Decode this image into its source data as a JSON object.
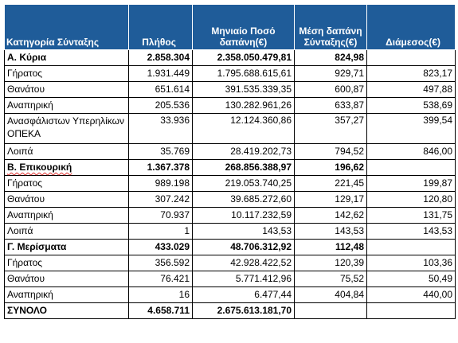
{
  "headers": {
    "category": "Κατηγορία Σύνταξης",
    "count": "Πλήθος",
    "monthly": "Μηνιαίο Ποσό δαπάνη(€)",
    "avg": "Μέση δαπάνη Σύνταξης(€)",
    "median": "Διάμεσος(€)"
  },
  "rows": [
    {
      "cat": "Α. Κύρια",
      "count": "2.858.304",
      "monthly": "2.358.050.479,81",
      "avg": "824,98",
      "median": ""
    },
    {
      "cat": "Γήρατος",
      "count": "1.931.449",
      "monthly": "1.795.688.615,61",
      "avg": "929,71",
      "median": "823,17"
    },
    {
      "cat": "Θανάτου",
      "count": "651.614",
      "monthly": "391.535.339,35",
      "avg": "600,87",
      "median": "497,88"
    },
    {
      "cat": "Αναπηρική",
      "count": "205.536",
      "monthly": "130.282.961,26",
      "avg": "633,87",
      "median": "538,69"
    },
    {
      "cat": "Ανασφάλιστων Υπερηλίκων ΟΠΕΚΑ",
      "count": "33.936",
      "monthly": "12.124.360,86",
      "avg": "357,27",
      "median": "399,54"
    },
    {
      "cat": "Λοιπά",
      "count": "35.769",
      "monthly": "28.419.202,73",
      "avg": "794,52",
      "median": "846,00"
    },
    {
      "cat": "Β. Επικουρική",
      "count": "1.367.378",
      "monthly": "268.856.388,97",
      "avg": "196,62",
      "median": ""
    },
    {
      "cat": "Γήρατος",
      "count": "989.198",
      "monthly": "219.053.740,25",
      "avg": "221,45",
      "median": "199,87"
    },
    {
      "cat": "Θανάτου",
      "count": "307.242",
      "monthly": "39.685.272,60",
      "avg": "129,17",
      "median": "120,80"
    },
    {
      "cat": "Αναπηρική",
      "count": "70.937",
      "monthly": "10.117.232,59",
      "avg": "142,62",
      "median": "131,75"
    },
    {
      "cat": "Λοιπά",
      "count": "1",
      "monthly": "143,53",
      "avg": "143,53",
      "median": "143,53"
    },
    {
      "cat": "Γ. Μερίσματα",
      "count": "433.029",
      "monthly": "48.706.312,92",
      "avg": "112,48",
      "median": ""
    },
    {
      "cat": "Γήρατος",
      "count": "356.592",
      "monthly": "42.928.422,52",
      "avg": "120,39",
      "median": "103,36"
    },
    {
      "cat": "Θανάτου",
      "count": "76.421",
      "monthly": "5.771.412,96",
      "avg": "75,52",
      "median": "50,49"
    },
    {
      "cat": "Αναπηρική",
      "count": "16",
      "monthly": "6.477,44",
      "avg": "404,84",
      "median": "440,00"
    },
    {
      "cat": "ΣΥΝΟΛΟ",
      "count": "4.658.711",
      "monthly": "2.675.613.181,70",
      "avg": "",
      "median": ""
    }
  ]
}
